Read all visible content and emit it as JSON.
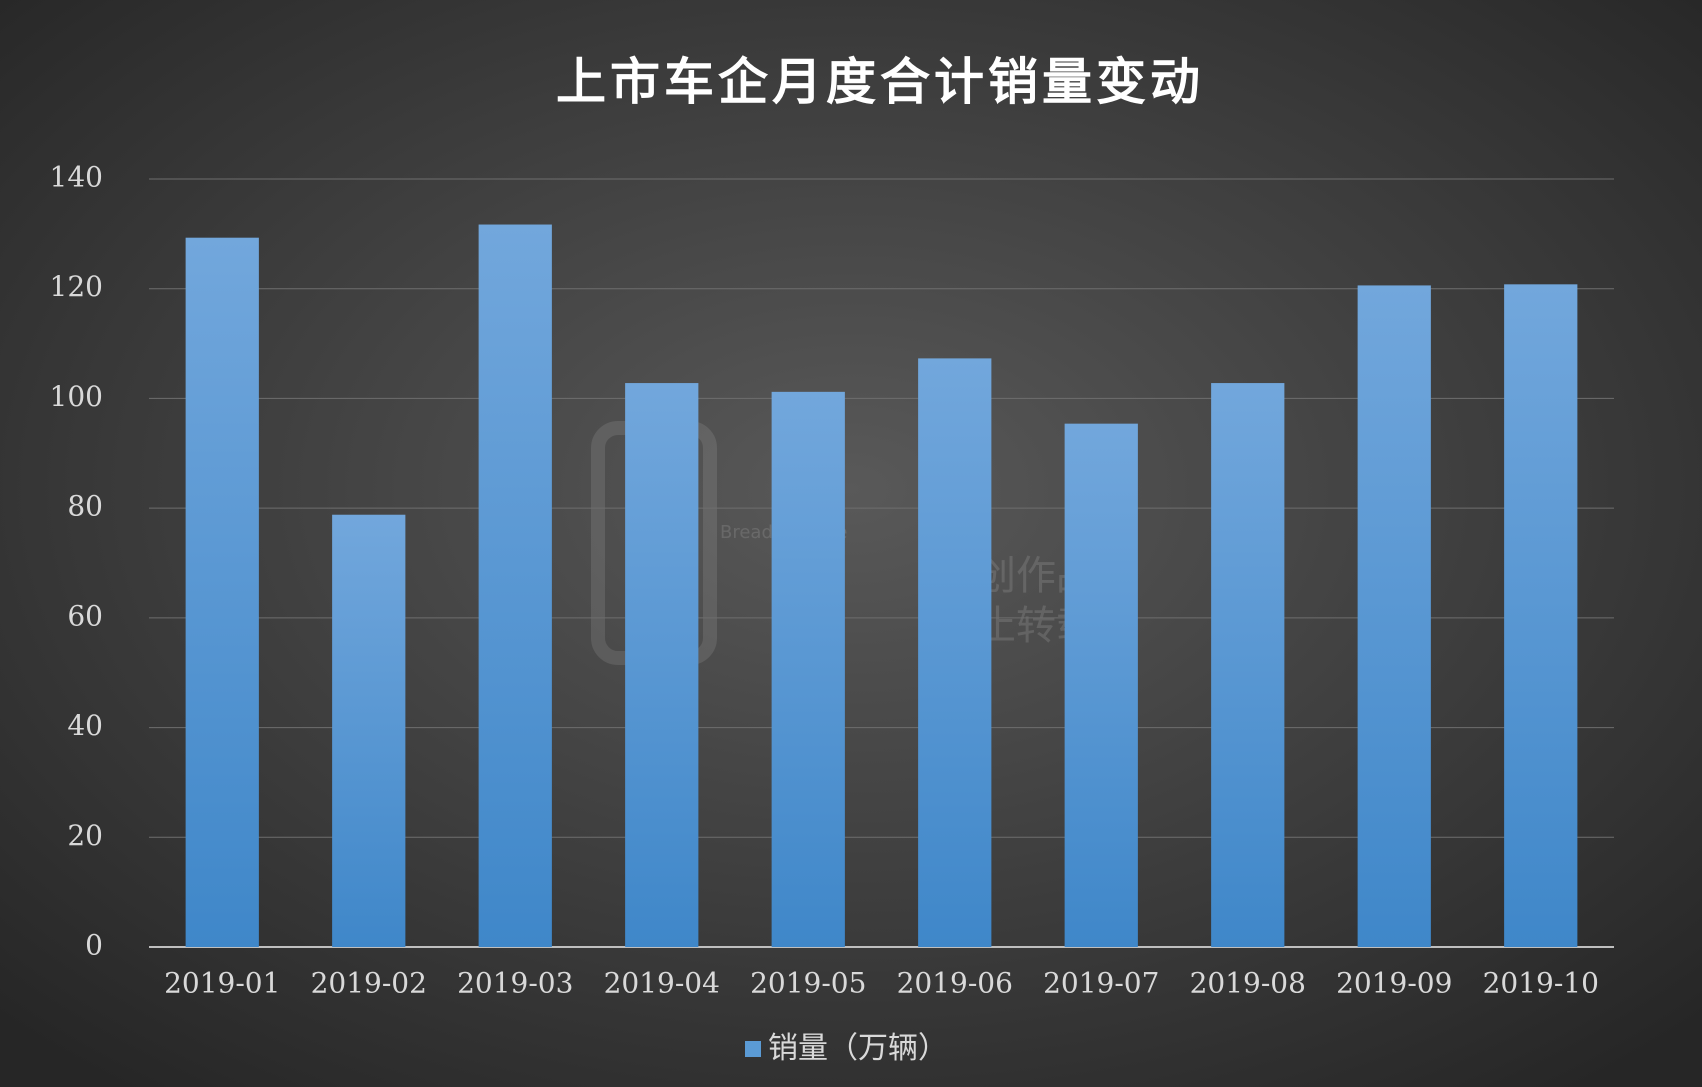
{
  "chart_data": {
    "type": "bar",
    "title": "上市车企月度合计销量变动",
    "categories": [
      "2019-01",
      "2019-02",
      "2019-03",
      "2019-04",
      "2019-05",
      "2019-06",
      "2019-07",
      "2019-08",
      "2019-09",
      "2019-10"
    ],
    "series": [
      {
        "name": "销量（万辆）",
        "color": "#5b9bd5",
        "values": [
          129.3,
          78.8,
          131.7,
          102.8,
          101.2,
          107.3,
          95.4,
          102.8,
          120.6,
          120.8
        ]
      }
    ],
    "ylim": [
      0,
      140
    ],
    "yticks": [
      0,
      20,
      40,
      60,
      80,
      100,
      120,
      140
    ],
    "grid": true,
    "legend": "bottom",
    "watermark": {
      "brand": "Bread Finance",
      "line1": "原创作品",
      "line2": "禁止转载"
    }
  }
}
